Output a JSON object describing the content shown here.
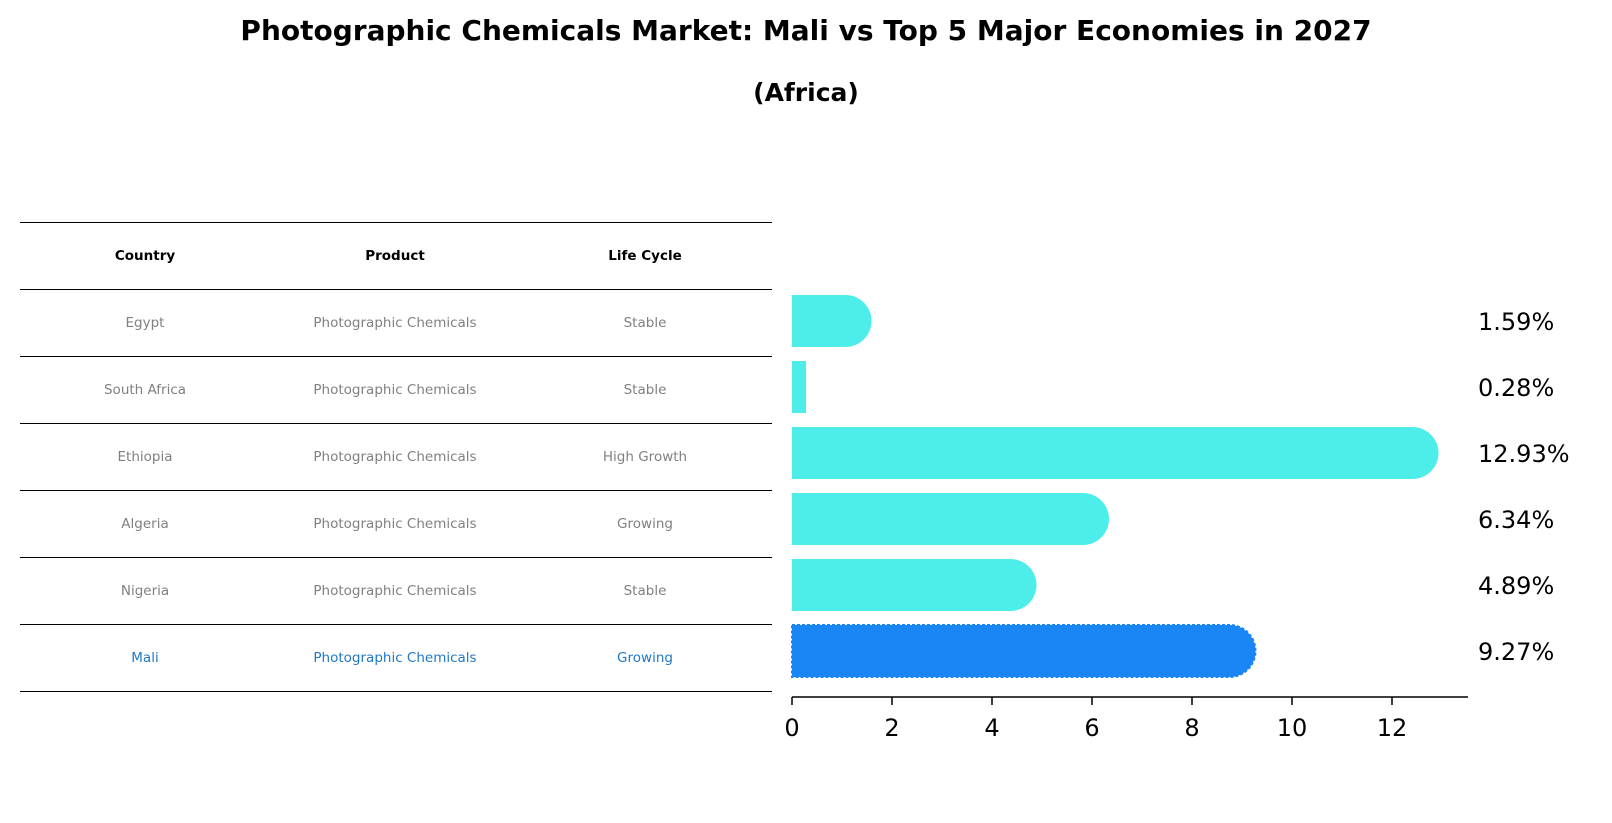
{
  "title": "Photographic Chemicals Market: Mali vs Top 5 Major Economies in 2027",
  "subtitle": "(Africa)",
  "table": {
    "headers": [
      "Country",
      "Product",
      "Life Cycle"
    ],
    "rows": [
      {
        "country": "Egypt",
        "product": "Photographic Chemicals",
        "life_cycle": "Stable"
      },
      {
        "country": "South Africa",
        "product": "Photographic Chemicals",
        "life_cycle": "Stable"
      },
      {
        "country": "Ethiopia",
        "product": "Photographic Chemicals",
        "life_cycle": "High Growth"
      },
      {
        "country": "Algeria",
        "product": "Photographic Chemicals",
        "life_cycle": "Growing"
      },
      {
        "country": "Nigeria",
        "product": "Photographic Chemicals",
        "life_cycle": "Stable"
      },
      {
        "country": "Mali",
        "product": "Photographic Chemicals",
        "life_cycle": "Growing"
      }
    ]
  },
  "colors": {
    "bar": "#4deeea",
    "highlight_bar": "#1a85f4",
    "highlight_text": "#1f78c8",
    "muted_text": "#808080"
  },
  "chart_data": {
    "type": "bar",
    "orientation": "horizontal",
    "categories": [
      "Egypt",
      "South Africa",
      "Ethiopia",
      "Algeria",
      "Nigeria",
      "Mali"
    ],
    "values": [
      1.59,
      0.28,
      12.93,
      6.34,
      4.89,
      9.27
    ],
    "value_labels": [
      "1.59%",
      "0.28%",
      "12.93%",
      "6.34%",
      "4.89%",
      "9.27%"
    ],
    "highlight": "Mali",
    "xlim": [
      0,
      13.5
    ],
    "xticks": [
      0,
      2,
      4,
      6,
      8,
      10,
      12
    ],
    "grid": false
  }
}
